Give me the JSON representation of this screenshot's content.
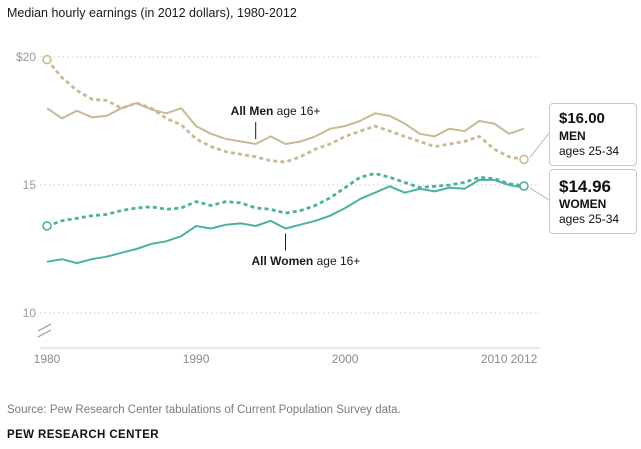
{
  "title": "Median hourly earnings (in 2012 dollars), 1980-2012",
  "source": "Source: Pew Research Center tabulations of Current Population Survey data.",
  "branding": "PEW RESEARCH CENTER",
  "annotations": {
    "all_men": {
      "bold": "All Men",
      "rest": " age 16+",
      "year": 1994
    },
    "all_women": {
      "bold": "All Women",
      "rest": " age 16+",
      "year": 1996
    }
  },
  "callouts": [
    {
      "value": "$16.00",
      "group": "MEN",
      "ages": "ages 25-34"
    },
    {
      "value": "$14.96",
      "group": "WOMEN",
      "ages": "ages 25-34"
    }
  ],
  "colors": {
    "tan": "#c8ba94",
    "teal": "#4cb1a2",
    "grid": "#cccccc",
    "axis": "#cfcfcf",
    "connector": "#b9b9b9",
    "break_mark": "#999999",
    "pointer": "#1a1a1a"
  },
  "chart_data": {
    "type": "line",
    "x_start": 1980,
    "x_end": 2012,
    "x": [
      1980,
      1981,
      1982,
      1983,
      1984,
      1985,
      1986,
      1987,
      1988,
      1989,
      1990,
      1991,
      1992,
      1993,
      1994,
      1995,
      1996,
      1997,
      1998,
      1999,
      2000,
      2001,
      2002,
      2003,
      2004,
      2005,
      2006,
      2007,
      2008,
      2009,
      2010,
      2011,
      2012
    ],
    "series": [
      {
        "name": "All Men age 16+",
        "style": "solid",
        "color_key": "tan",
        "values": [
          18.0,
          17.6,
          17.9,
          17.65,
          17.7,
          18.0,
          18.2,
          17.95,
          17.8,
          18.0,
          17.3,
          17.0,
          16.8,
          16.7,
          16.6,
          16.9,
          16.6,
          16.7,
          16.9,
          17.2,
          17.3,
          17.5,
          17.8,
          17.7,
          17.4,
          17.0,
          16.9,
          17.2,
          17.1,
          17.5,
          17.4,
          17.0,
          17.2
        ]
      },
      {
        "name": "All Women age 16+",
        "style": "solid",
        "color_key": "teal",
        "values": [
          12.0,
          12.1,
          11.95,
          12.1,
          12.2,
          12.35,
          12.5,
          12.7,
          12.8,
          13.0,
          13.4,
          13.3,
          13.45,
          13.5,
          13.4,
          13.6,
          13.3,
          13.45,
          13.6,
          13.8,
          14.1,
          14.45,
          14.7,
          14.95,
          14.7,
          14.85,
          14.75,
          14.9,
          14.85,
          15.2,
          15.2,
          15.0,
          14.9
        ]
      },
      {
        "name": "Men ages 25-34",
        "style": "dashed",
        "color_key": "tan",
        "values": [
          19.9,
          19.2,
          18.7,
          18.35,
          18.3,
          18.0,
          18.2,
          18.0,
          17.6,
          17.35,
          16.8,
          16.5,
          16.3,
          16.2,
          16.1,
          15.95,
          15.9,
          16.1,
          16.4,
          16.6,
          16.9,
          17.1,
          17.3,
          17.1,
          16.9,
          16.7,
          16.5,
          16.6,
          16.7,
          16.9,
          16.4,
          16.1,
          16.0
        ]
      },
      {
        "name": "Women ages 25-34",
        "style": "dashed",
        "color_key": "teal",
        "values": [
          13.4,
          13.6,
          13.7,
          13.8,
          13.85,
          14.0,
          14.1,
          14.15,
          14.05,
          14.1,
          14.35,
          14.2,
          14.35,
          14.3,
          14.1,
          14.05,
          13.9,
          14.0,
          14.2,
          14.5,
          14.9,
          15.3,
          15.45,
          15.3,
          15.1,
          14.9,
          14.95,
          15.0,
          15.1,
          15.3,
          15.25,
          15.05,
          14.96
        ]
      }
    ],
    "end_labels": {
      "men_25_34": 16.0,
      "women_25_34": 14.96
    },
    "yticks": [
      {
        "label": "$20",
        "value": 20
      },
      {
        "label": "15",
        "value": 15
      },
      {
        "label": "10",
        "value": 10
      }
    ],
    "xticks": [
      1980,
      1990,
      2000,
      2010,
      2012
    ],
    "ylim": [
      10,
      20
    ],
    "axis_break": true,
    "grid": "dotted-horizontal",
    "legend_position": "inline-annotations"
  }
}
